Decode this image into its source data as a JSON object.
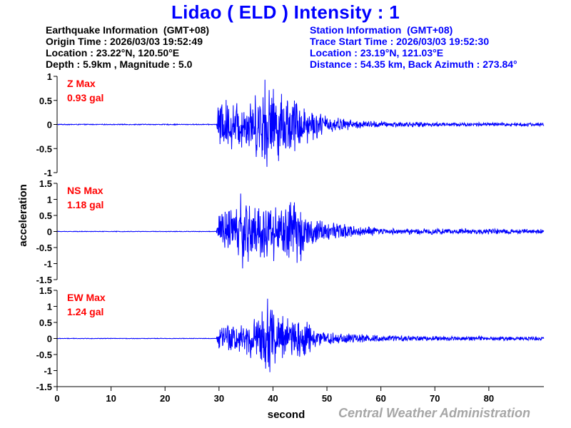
{
  "header": {
    "title": "Lidao  ( ELD )  Intensity : 1",
    "station_name": "Lidao",
    "station_code": "ELD",
    "intensity": "1"
  },
  "earthquake_info": {
    "heading": "Earthquake Information  (GMT+08)",
    "origin_time": "Origin Time : 2026/03/03 19:52:49",
    "location": "Location : 23.22°N, 120.50°E",
    "depth_magnitude": "Depth : 5.9km , Magnitude : 5.0"
  },
  "station_info": {
    "heading": "Station Information  (GMT+08)",
    "trace_start": "Trace Start Time : 2026/03/03 19:52:30",
    "location": "Location : 23.19°N, 121.03°E",
    "distance_azimuth": "Distance : 54.35 km, Back Azimuth : 273.84°"
  },
  "axes": {
    "ylabel": "acceleration",
    "xlabel": "second"
  },
  "credit": "Central Weather Administration",
  "colors": {
    "trace": "#0000ff",
    "title": "#0000ff",
    "max_label": "#ff0000",
    "credit": "#a6a6a6"
  },
  "chart_data": [
    {
      "type": "line",
      "component": "Z",
      "title": "Z Max",
      "max_label": "Z Max",
      "max_value": "0.93 gal",
      "peak": 0.93,
      "trough": -0.88,
      "xlabel": "second",
      "ylabel": "acceleration",
      "xlim": [
        0,
        90
      ],
      "ylim": [
        -1,
        1
      ],
      "yticks": [
        "1",
        "0.5",
        "0",
        "-0.5",
        "-1"
      ],
      "ytick_values": [
        1,
        0.5,
        0,
        -0.5,
        -1
      ],
      "p_arrival_s": 30,
      "peak_time_s": 38.5,
      "envelope": [
        [
          0,
          0.01
        ],
        [
          29.5,
          0.01
        ],
        [
          30,
          0.6
        ],
        [
          33,
          0.55
        ],
        [
          36,
          0.6
        ],
        [
          38.5,
          0.9
        ],
        [
          41,
          0.8
        ],
        [
          44,
          0.65
        ],
        [
          46,
          0.45
        ],
        [
          50,
          0.2
        ],
        [
          55,
          0.1
        ],
        [
          60,
          0.07
        ],
        [
          70,
          0.05
        ],
        [
          90,
          0.04
        ]
      ]
    },
    {
      "type": "line",
      "component": "NS",
      "title": "NS Max",
      "max_label": "NS Max",
      "max_value": "1.18 gal",
      "peak": 1.18,
      "trough": -1.15,
      "xlabel": "second",
      "ylabel": "acceleration",
      "xlim": [
        0,
        90
      ],
      "ylim": [
        -1.5,
        1.5
      ],
      "yticks": [
        "1.5",
        "1",
        "0.5",
        "0",
        "-0.5",
        "-1",
        "-1.5"
      ],
      "ytick_values": [
        1.5,
        1,
        0.5,
        0,
        -0.5,
        -1,
        -1.5
      ],
      "p_arrival_s": 30,
      "peak_time_s": 34,
      "envelope": [
        [
          0,
          0.01
        ],
        [
          29.5,
          0.01
        ],
        [
          30,
          0.7
        ],
        [
          34,
          1.0
        ],
        [
          37,
          1.05
        ],
        [
          39,
          1.0
        ],
        [
          42,
          0.95
        ],
        [
          45,
          1.05
        ],
        [
          47,
          0.5
        ],
        [
          50,
          0.35
        ],
        [
          55,
          0.2
        ],
        [
          60,
          0.12
        ],
        [
          70,
          0.1
        ],
        [
          90,
          0.08
        ]
      ]
    },
    {
      "type": "line",
      "component": "EW",
      "title": "EW Max",
      "max_label": "EW Max",
      "max_value": "1.24 gal",
      "peak": 1.24,
      "trough": -1.05,
      "xlabel": "second",
      "ylabel": "acceleration",
      "xlim": [
        0,
        90
      ],
      "ylim": [
        -1.5,
        1.5
      ],
      "yticks": [
        "1.5",
        "1",
        "0.5",
        "0",
        "-0.5",
        "-1",
        "-1.5"
      ],
      "ytick_values": [
        1.5,
        1,
        0.5,
        0,
        -0.5,
        -1,
        -1.5
      ],
      "p_arrival_s": 30,
      "peak_time_s": 39,
      "envelope": [
        [
          0,
          0.01
        ],
        [
          29.5,
          0.01
        ],
        [
          30,
          0.45
        ],
        [
          33,
          0.5
        ],
        [
          35,
          0.6
        ],
        [
          37,
          0.85
        ],
        [
          39,
          1.1
        ],
        [
          42,
          0.8
        ],
        [
          44,
          0.75
        ],
        [
          46,
          0.7
        ],
        [
          48,
          0.3
        ],
        [
          52,
          0.2
        ],
        [
          56,
          0.15
        ],
        [
          60,
          0.1
        ],
        [
          70,
          0.08
        ],
        [
          90,
          0.07
        ]
      ]
    }
  ],
  "xaxis": {
    "ticks": [
      "0",
      "10",
      "20",
      "30",
      "40",
      "50",
      "60",
      "70",
      "80"
    ],
    "tick_values": [
      0,
      10,
      20,
      30,
      40,
      50,
      60,
      70,
      80
    ]
  }
}
